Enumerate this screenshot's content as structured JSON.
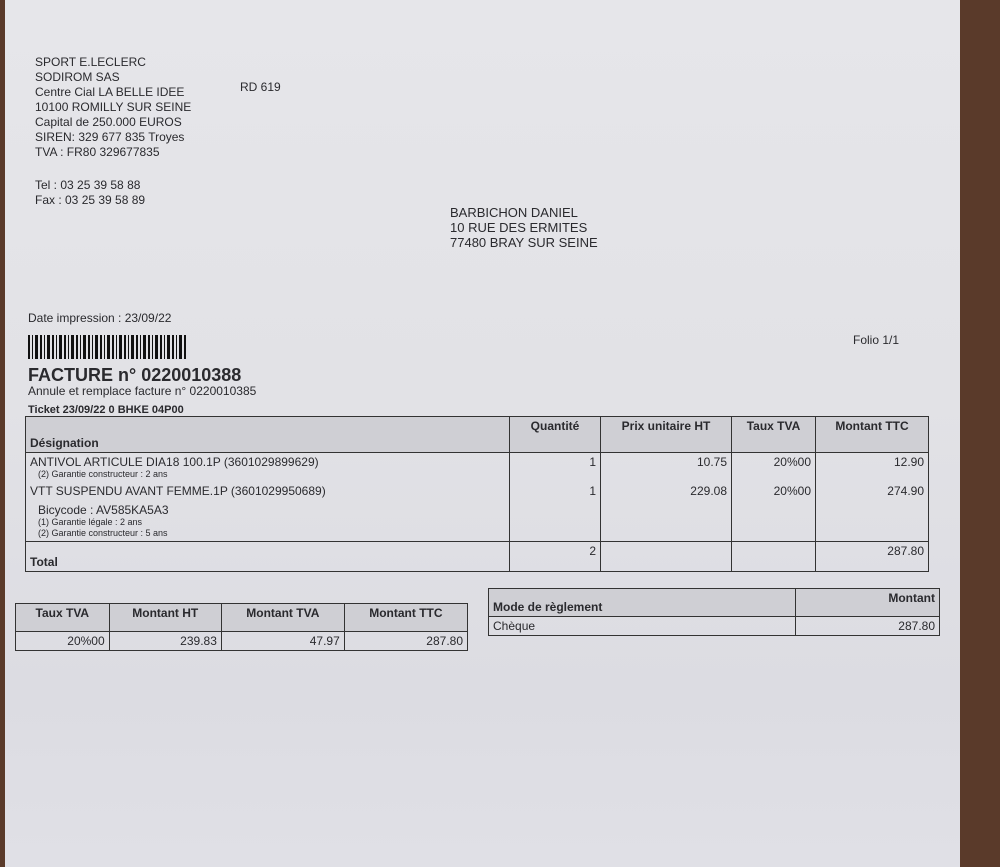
{
  "seller": {
    "lines": [
      "SPORT E.LECLERC",
      "SODIROM SAS",
      "Centre Cial LA BELLE IDEE",
      "10100 ROMILLY SUR SEINE",
      "Capital de 250.000 EUROS",
      "SIREN: 329 677 835 Troyes",
      "TVA : FR80 329677835"
    ],
    "road": "RD 619",
    "tel": "Tel : 03 25 39 58 88",
    "fax": "Fax : 03 25 39 58 89"
  },
  "customer": {
    "lines": [
      "BARBICHON DANIEL",
      "10 RUE DES ERMITES",
      "77480 BRAY SUR SEINE"
    ]
  },
  "date_impression": "Date impression : 23/09/22",
  "folio": "Folio 1/1",
  "invoice_title": "FACTURE n° 0220010388",
  "replaces": "Annule et remplace facture n° 0220010385",
  "ticket": "Ticket 23/09/22 0 BHKE 04P00",
  "items_table": {
    "headers": [
      "Désignation",
      "Quantité",
      "Prix unitaire HT",
      "Taux TVA",
      "Montant TTC"
    ],
    "rows": [
      {
        "designation": "ANTIVOL ARTICULE DIA18 100.1P (3601029899629)",
        "notes": [
          "(2) Garantie constructeur : 2 ans"
        ],
        "qty": "1",
        "price": "10.75",
        "vat": "20%00",
        "total": "12.90"
      },
      {
        "designation": "VTT SUSPENDU AVANT FEMME.1P (3601029950689)",
        "notes": [
          "Bicycode : AV585KA5A3",
          "(1) Garantie légale : 2 ans",
          "(2) Garantie constructeur : 5 ans"
        ],
        "qty": "1",
        "price": "229.08",
        "vat": "20%00",
        "total": "274.90"
      }
    ],
    "total_label": "Total",
    "total_qty": "2",
    "total_amount": "287.80"
  },
  "vat_table": {
    "headers": [
      "Taux TVA",
      "Montant HT",
      "Montant TVA",
      "Montant TTC"
    ],
    "row": [
      "20%00",
      "239.83",
      "47.97",
      "287.80"
    ]
  },
  "payment_table": {
    "headers": [
      "Mode de règlement",
      "Montant"
    ],
    "row": [
      "Chèque",
      "287.80"
    ]
  }
}
